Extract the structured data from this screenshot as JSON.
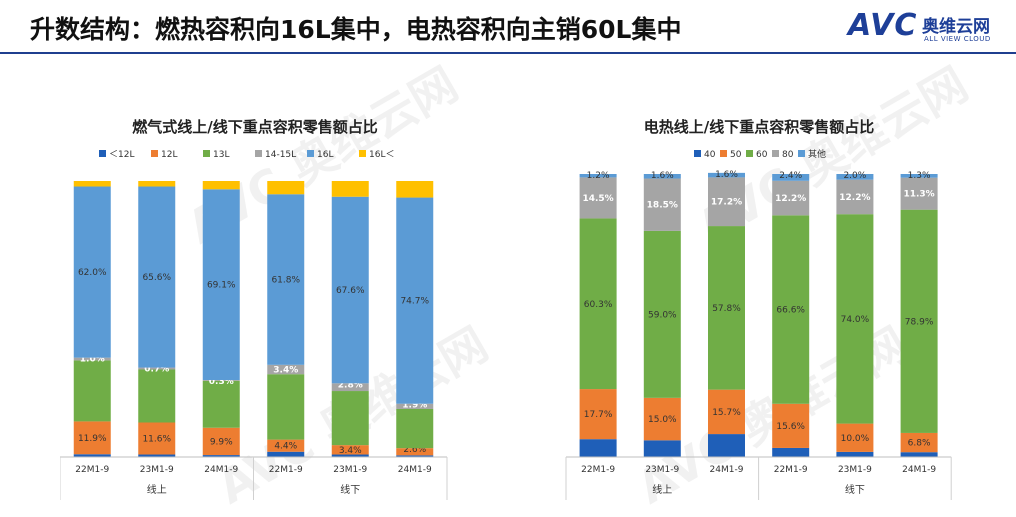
{
  "page": {
    "title": "升数结构：燃热容积向16L集中，电热容积向主销60L集中",
    "logo": {
      "brand": "AVC",
      "cn": "奥维云网",
      "en": "ALL VIEW CLOUD"
    },
    "watermark": "AVC 奥维云网"
  },
  "colors": {
    "blue": "#1f5fb8",
    "orange": "#ed7d31",
    "green": "#70ad47",
    "gray": "#a5a5a5",
    "lightblue": "#5b9bd5",
    "yellow": "#ffc000",
    "title_rule": "#1f3f8f",
    "brand": "#1e3f98"
  },
  "chart_data": [
    {
      "type": "bar",
      "stacked": true,
      "title": "燃气式线上/线下重点容积零售额占比",
      "categories": [
        "22M1-9",
        "23M1-9",
        "24M1-9",
        "22M1-9",
        "23M1-9",
        "24M1-9"
      ],
      "groups": [
        {
          "label": "线上",
          "count": 3
        },
        {
          "label": "线下",
          "count": 3
        }
      ],
      "ylim": [
        0,
        100
      ],
      "legend_position": "top",
      "series": [
        {
          "name": "＜12L",
          "color": "#1f5fb8",
          "values": [
            1.0,
            0.9,
            0.7,
            1.9,
            0.9,
            0.6
          ],
          "labels": [
            "",
            "",
            "",
            "",
            "",
            ""
          ]
        },
        {
          "name": "12L",
          "color": "#ed7d31",
          "values": [
            11.9,
            11.6,
            9.9,
            4.4,
            3.4,
            2.6
          ],
          "labels": [
            "11.9%",
            "11.6%",
            "9.9%",
            "4.4%",
            "3.4%",
            "2.6%"
          ]
        },
        {
          "name": "13L",
          "color": "#70ad47",
          "values": [
            22.1,
            19.2,
            17.0,
            23.7,
            19.6,
            14.2
          ],
          "labels": [
            "",
            "",
            "",
            "",
            "",
            ""
          ]
        },
        {
          "name": "14-15L",
          "color": "#a5a5a5",
          "values": [
            1.0,
            0.7,
            0.3,
            3.4,
            2.8,
            1.9
          ],
          "labels": [
            "1.0%",
            "0.7%",
            "0.3%",
            "3.4%",
            "2.8%",
            "1.9%"
          ]
        },
        {
          "name": "16L",
          "color": "#5b9bd5",
          "values": [
            62.0,
            65.6,
            69.1,
            61.8,
            67.6,
            74.7
          ],
          "labels": [
            "62.0%",
            "65.6%",
            "69.1%",
            "61.8%",
            "67.6%",
            "74.7%"
          ]
        },
        {
          "name": "16L＜",
          "color": "#ffc000",
          "values": [
            2.0,
            2.0,
            3.0,
            4.8,
            5.7,
            6.0
          ],
          "labels": [
            "",
            "",
            "",
            "",
            "",
            ""
          ]
        }
      ]
    },
    {
      "type": "bar",
      "stacked": true,
      "title": "电热线上/线下重点容积零售额占比",
      "categories": [
        "22M1-9",
        "23M1-9",
        "24M1-9",
        "22M1-9",
        "23M1-9",
        "24M1-9"
      ],
      "groups": [
        {
          "label": "线上",
          "count": 3
        },
        {
          "label": "线下",
          "count": 3
        }
      ],
      "ylim": [
        0,
        100
      ],
      "legend_position": "top",
      "series": [
        {
          "name": "40",
          "color": "#1f5fb8",
          "values": [
            6.3,
            5.9,
            8.1,
            3.2,
            1.8,
            1.7
          ],
          "labels": [
            "",
            "",
            "",
            "",
            "",
            ""
          ]
        },
        {
          "name": "50",
          "color": "#ed7d31",
          "values": [
            17.7,
            15.0,
            15.7,
            15.6,
            10.0,
            6.8
          ],
          "labels": [
            "17.7%",
            "15.0%",
            "15.7%",
            "15.6%",
            "10.0%",
            "6.8%"
          ]
        },
        {
          "name": "60",
          "color": "#70ad47",
          "values": [
            60.3,
            59.0,
            57.8,
            66.6,
            74.0,
            78.9
          ],
          "labels": [
            "60.3%",
            "59.0%",
            "57.8%",
            "66.6%",
            "74.0%",
            "78.9%"
          ]
        },
        {
          "name": "80",
          "color": "#a5a5a5",
          "values": [
            14.5,
            18.5,
            17.2,
            12.2,
            12.2,
            11.3
          ],
          "labels": [
            "14.5%",
            "18.5%",
            "17.2%",
            "12.2%",
            "12.2%",
            "11.3%"
          ]
        },
        {
          "name": "其他",
          "color": "#5b9bd5",
          "values": [
            1.2,
            1.6,
            1.6,
            2.4,
            2.0,
            1.3
          ],
          "labels": [
            "1.2%",
            "1.6%",
            "1.6%",
            "2.4%",
            "2.0%",
            "1.3%"
          ]
        }
      ]
    }
  ]
}
